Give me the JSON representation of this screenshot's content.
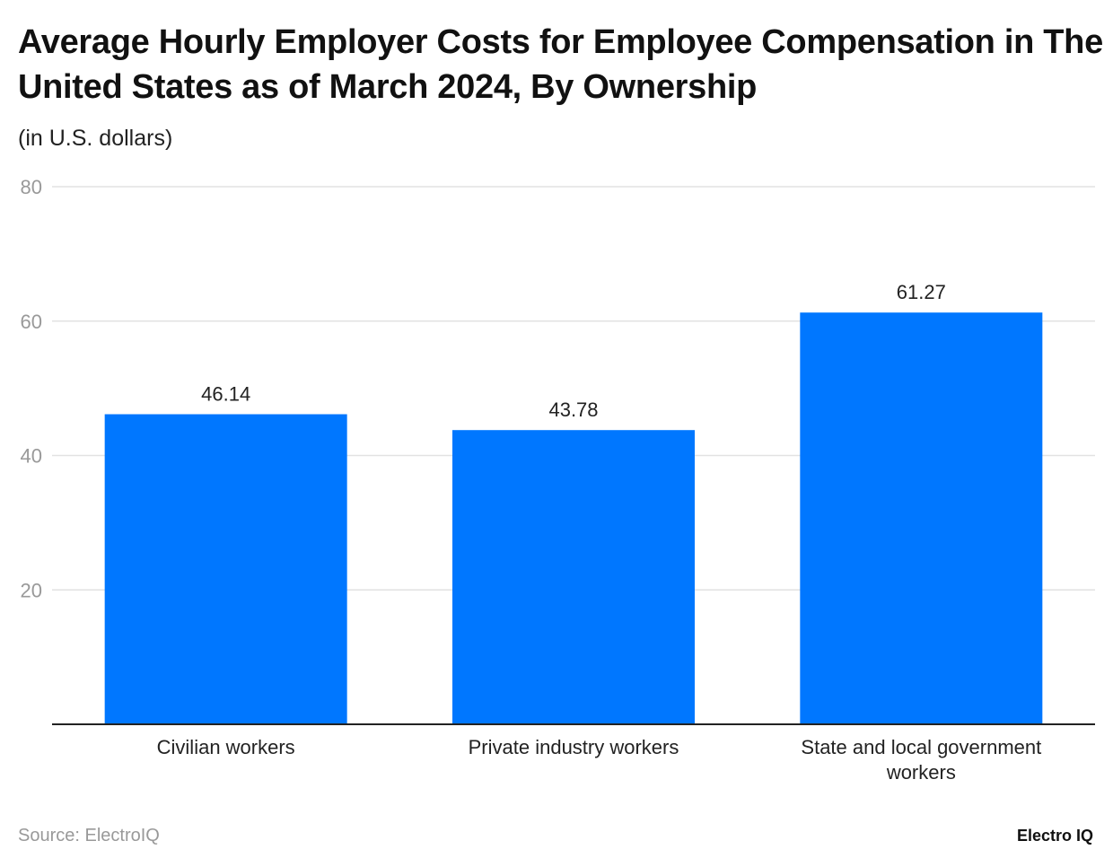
{
  "title": "Average Hourly Employer Costs for Employee Compensation in The United States as of March 2024, By Ownership",
  "subtitle": "(in U.S. dollars)",
  "source": "Source: ElectroIQ",
  "logo": "Electro IQ",
  "chart_data": {
    "type": "bar",
    "title": "Average Hourly Employer Costs for Employee Compensation in The United States as of March 2024, By Ownership",
    "ylabel": "(in U.S. dollars)",
    "categories": [
      "Civilian workers",
      "Private industry workers",
      "State and local government workers"
    ],
    "values": [
      46.14,
      43.78,
      61.27
    ],
    "data_labels": [
      "46.14",
      "43.78",
      "61.27"
    ],
    "yticks": [
      20,
      40,
      60,
      80
    ],
    "ylim": [
      0,
      80
    ],
    "grid": true,
    "bar_color": "#0077ff"
  }
}
